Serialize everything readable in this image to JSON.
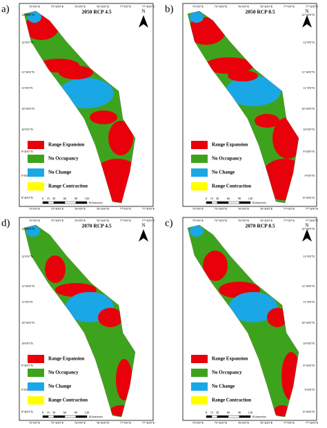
{
  "panels": [
    {
      "label": "a)",
      "title": "2050 RCP 4.5"
    },
    {
      "label": "b)",
      "title": "2050 RCP 8.5"
    },
    {
      "label": "d)",
      "title": "2070 RCP 4.5"
    },
    {
      "label": "c)",
      "title": "2070 RCP 8.5"
    }
  ],
  "legend": [
    {
      "label": "Range Expansion",
      "color": "#e8000b"
    },
    {
      "label": "No Occupancy",
      "color": "#3ea31c"
    },
    {
      "label": "No Change",
      "color": "#1aa7e6"
    },
    {
      "label": "Range Contraction",
      "color": "#ffff00"
    }
  ],
  "north": "N",
  "scale_ticks": [
    "0",
    "15",
    "30",
    "60",
    "90",
    "120"
  ],
  "scale_unit": "Kilometers",
  "lat_labels": [
    "12°30'0\"N",
    "12°0'0\"N",
    "11°30'0\"N",
    "11°0'0\"N",
    "10°30'0\"N",
    "10°0'0\"N",
    "9°30'0\"N",
    "9°0'0\"N",
    "8°30'0\"N"
  ],
  "lon_labels": [
    "75°0'0\"E",
    "75°30'0\"E",
    "76°0'0\"E",
    "76°30'0\"E",
    "77°0'0\"E",
    "77°30'0\"E"
  ]
}
